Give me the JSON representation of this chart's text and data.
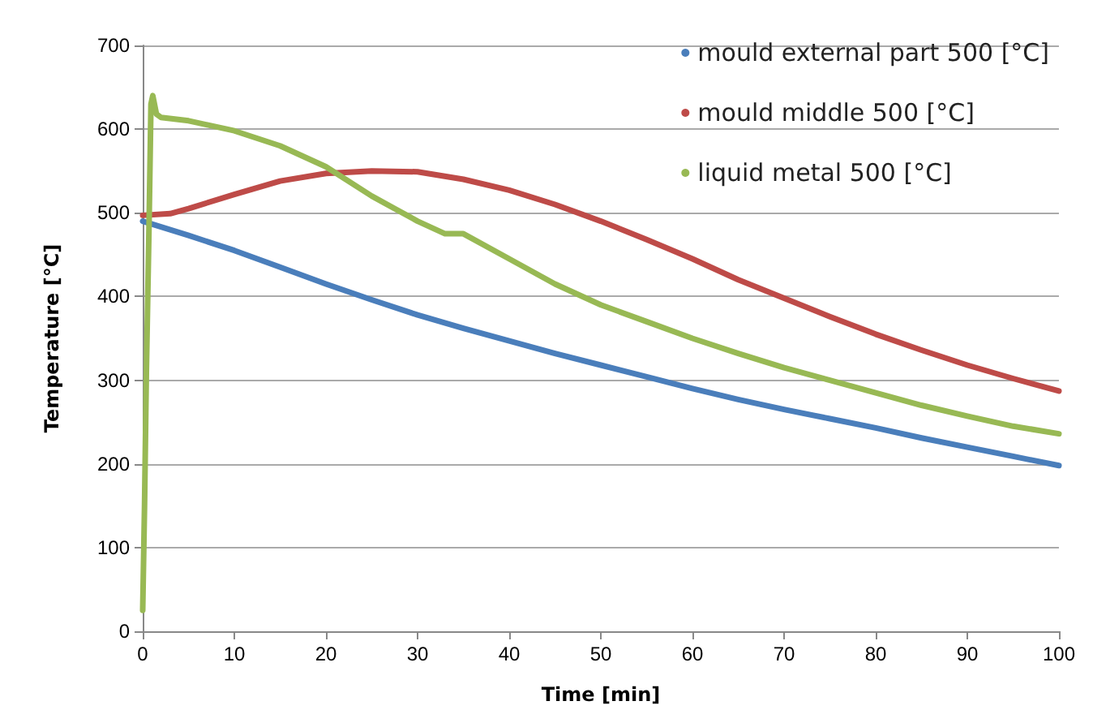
{
  "chart_data": {
    "type": "line",
    "xlabel": "Time [min]",
    "ylabel": "Temperature [°C]",
    "xlim": [
      0,
      100
    ],
    "xticks": [
      0,
      10,
      20,
      30,
      40,
      50,
      60,
      70,
      80,
      90,
      100
    ],
    "ylim": [
      0,
      700
    ],
    "yticks": [
      0,
      100,
      200,
      300,
      400,
      500,
      600,
      700
    ],
    "grid": "y",
    "legend": "top right",
    "marker": "none",
    "line_style": "solid",
    "series": [
      {
        "name": "mould external part 500 [°C]",
        "color": "#4a7ebb",
        "x": [
          0,
          5,
          10,
          15,
          20,
          25,
          30,
          35,
          40,
          45,
          50,
          55,
          60,
          65,
          70,
          75,
          80,
          85,
          90,
          95,
          100
        ],
        "values": [
          490,
          473,
          455,
          435,
          415,
          396,
          378,
          362,
          347,
          332,
          318,
          304,
          290,
          277,
          265,
          254,
          243,
          231,
          220,
          209,
          198
        ]
      },
      {
        "name": "mould middle 500 [°C]",
        "color": "#be4b48",
        "x": [
          0,
          3,
          5,
          10,
          15,
          20,
          25,
          30,
          35,
          40,
          45,
          50,
          55,
          60,
          65,
          70,
          75,
          80,
          85,
          90,
          95,
          100
        ],
        "values": [
          497,
          499,
          505,
          522,
          538,
          547,
          550,
          549,
          540,
          527,
          510,
          490,
          468,
          445,
          420,
          398,
          376,
          355,
          336,
          318,
          302,
          287
        ]
      },
      {
        "name": "liquid metal 500 [°C]",
        "color": "#98b954",
        "x": [
          0,
          0.2,
          0.4,
          0.7,
          0.9,
          1.1,
          1.5,
          2,
          5,
          10,
          15,
          20,
          25,
          30,
          33,
          35,
          40,
          45,
          50,
          55,
          60,
          65,
          70,
          75,
          80,
          85,
          90,
          95,
          100
        ],
        "values": [
          25,
          150,
          310,
          490,
          630,
          640,
          618,
          614,
          610,
          598,
          580,
          555,
          520,
          490,
          475,
          475,
          445,
          415,
          390,
          370,
          350,
          332,
          315,
          300,
          285,
          270,
          257,
          245,
          236
        ]
      }
    ]
  }
}
